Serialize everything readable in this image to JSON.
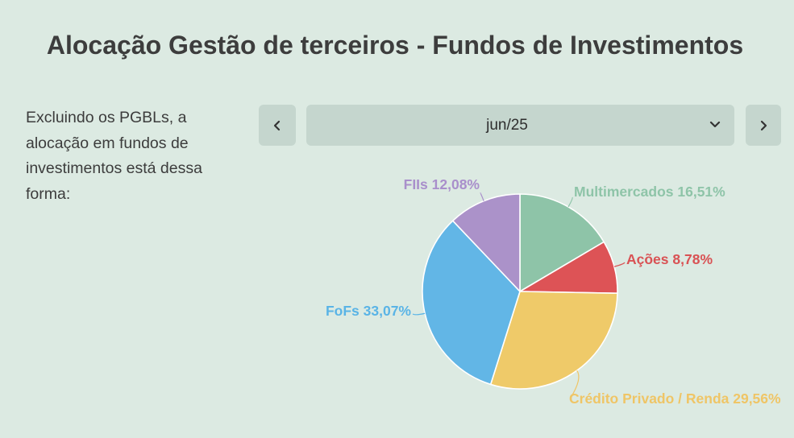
{
  "header": {
    "title": "Alocação Gestão de terceiros - Fundos de Investimentos"
  },
  "description": "Excluindo os PGBLs, a alocação em fundos de investimentos está dessa forma:",
  "period_selector": {
    "selected": "jun/25",
    "prev_icon": "chevron-left-icon",
    "next_icon": "chevron-right-icon",
    "dropdown_icon": "chevron-down-icon"
  },
  "chart_data": {
    "type": "pie",
    "start_angle_deg": 0,
    "direction": "clockwise",
    "slices": [
      {
        "label": "Multimercados 16,51%",
        "name": "Multimercados",
        "value": 16.51,
        "color": "#8ec4a8",
        "label_color": "#8ec4a8"
      },
      {
        "label": "Ações 8,78%",
        "name": "Ações",
        "value": 8.78,
        "color": "#dd5356",
        "label_color": "#d95254"
      },
      {
        "label": "Crédito Privado / Renda 29,56%",
        "name": "Crédito Privado / Renda",
        "value": 29.56,
        "color": "#efca69",
        "label_color": "#efc566"
      },
      {
        "label": "FoFs 33,07%",
        "name": "FoFs",
        "value": 33.07,
        "color": "#62b6e6",
        "label_color": "#5ab4e6"
      },
      {
        "label": "FIIs 12,08%",
        "name": "FIIs",
        "value": 12.08,
        "color": "#ab92c9",
        "label_color": "#a98fcb"
      }
    ]
  }
}
